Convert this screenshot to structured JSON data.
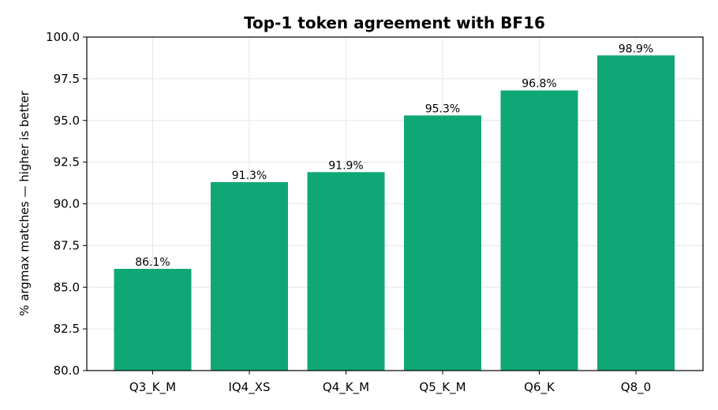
{
  "chart_data": {
    "type": "bar",
    "title": "Top-1 token agreement with BF16",
    "xlabel": "",
    "ylabel": "% argmax matches — higher is better",
    "categories": [
      "Q3_K_M",
      "IQ4_XS",
      "Q4_K_M",
      "Q5_K_M",
      "Q6_K",
      "Q8_0"
    ],
    "values": [
      86.1,
      91.3,
      91.9,
      95.3,
      96.8,
      98.9
    ],
    "data_labels": [
      "86.1%",
      "91.3%",
      "91.9%",
      "95.3%",
      "96.8%",
      "98.9%"
    ],
    "ylim": [
      80.0,
      100.0
    ],
    "yticks": [
      80.0,
      82.5,
      85.0,
      87.5,
      90.0,
      92.5,
      95.0,
      97.5,
      100.0
    ],
    "ytick_labels": [
      "80.0",
      "82.5",
      "85.0",
      "87.5",
      "90.0",
      "92.5",
      "95.0",
      "97.5",
      "100.0"
    ],
    "grid": true,
    "legend": "none",
    "bar_color": "#10a776"
  }
}
